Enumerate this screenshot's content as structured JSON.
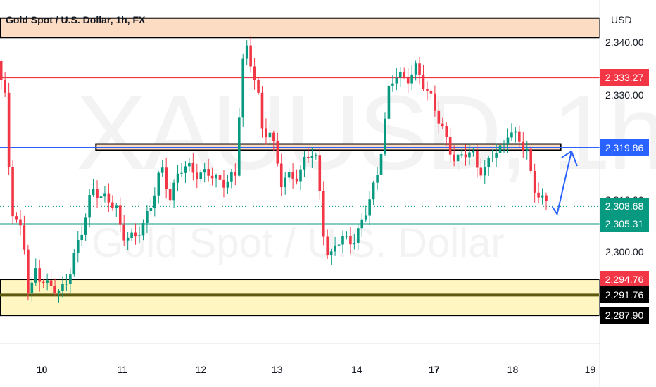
{
  "header": {
    "symbol_title": "Gold Spot / U.S. Dollar, 1h, FX",
    "currency": "USD"
  },
  "watermark": {
    "ticker": "XAUUSD, 1h",
    "name": "Gold Spot / U.S. Dollar"
  },
  "colors": {
    "up": "#089981",
    "down": "#f23645",
    "blue": "#2962ff",
    "resistance_zone": "#fcdcc2",
    "support_zone": "#fff6c2",
    "support_line": "#5d5a10",
    "green_line": "#089981"
  },
  "chart_data": {
    "type": "candlestick",
    "title": "Gold Spot / U.S. Dollar, 1h, FX",
    "ylim": [
      2284,
      2342
    ],
    "xlim": [
      0,
      100
    ],
    "y_ticks": [
      "2,340.00",
      "2,330.00",
      "2,310.00",
      "2,300.00"
    ],
    "x_ticks": [
      {
        "label": "10",
        "x": 7,
        "bold": true
      },
      {
        "label": "11",
        "x": 20.4
      },
      {
        "label": "12",
        "x": 33.5
      },
      {
        "label": "13",
        "x": 46.2
      },
      {
        "label": "14",
        "x": 59.5
      },
      {
        "label": "17",
        "x": 72.4,
        "bold": true
      },
      {
        "label": "18",
        "x": 85.5
      },
      {
        "label": "19",
        "x": 98.4
      }
    ],
    "horizontal_lines": [
      {
        "name": "red-resistance-line",
        "price": 2333.27,
        "color": "#f23645"
      },
      {
        "name": "blue-pivot-line",
        "price": 2319.86,
        "color": "#2962ff"
      },
      {
        "name": "green-support-line",
        "price": 2305.31,
        "color": "#089981"
      },
      {
        "name": "dark-support-line",
        "price": 2291.76,
        "color": "#5d5a10"
      }
    ],
    "zones": [
      {
        "name": "top-resistance-zone",
        "top": 2344.6,
        "bottom": 2340.9,
        "x_start": 0,
        "x_end": 100,
        "color": "#fcdcc2"
      },
      {
        "name": "pivot-box",
        "top": 2320.6,
        "bottom": 2319.4,
        "x_start": 16,
        "x_end": 93.5,
        "color": "#fcdcc2"
      },
      {
        "name": "bottom-support-zone",
        "top": 2294.76,
        "bottom": 2287.9,
        "x_start": 0,
        "x_end": 100,
        "color": "#fff6c2"
      }
    ],
    "price_labels": [
      {
        "value": "2,333.27",
        "price": 2333.27,
        "bg": "#f23645",
        "fg": "#ffffff"
      },
      {
        "value": "2,319.86",
        "price": 2319.86,
        "bg": "#2962ff",
        "fg": "#ffffff"
      },
      {
        "value": "2,308.68",
        "price": 2308.68,
        "bg": "#089981",
        "fg": "#ffffff"
      },
      {
        "value": "2,305.31",
        "price": 2305.31,
        "bg": "#089981",
        "fg": "#ffffff"
      },
      {
        "value": "2,294.76",
        "price": 2294.76,
        "bg": "#f23645",
        "fg": "#ffffff"
      },
      {
        "value": "2,291.76",
        "price": 2291.76,
        "bg": "#000000",
        "fg": "#ffffff"
      },
      {
        "value": "2,287.90",
        "price": 2287.9,
        "bg": "#000000",
        "fg": "#ffffff"
      }
    ],
    "current_price": 2308.68,
    "projection": [
      {
        "x": 92.1,
        "y": 2308.6
      },
      {
        "x": 92.9,
        "y": 2307.2
      },
      {
        "x": 95.3,
        "y": 2319.2
      }
    ],
    "ohlc_keypoints": [
      [
        0,
        2336.4
      ],
      [
        1.5,
        2329.0
      ],
      [
        2.5,
        2309.0
      ],
      [
        4.5,
        2303.0
      ],
      [
        5.5,
        2289.8
      ],
      [
        6.5,
        2297.0
      ],
      [
        8.5,
        2293.6
      ],
      [
        10.5,
        2292.0
      ],
      [
        12.5,
        2297.0
      ],
      [
        14.5,
        2304.4
      ],
      [
        16,
        2313.0
      ],
      [
        17.5,
        2310.0
      ],
      [
        20,
        2309.0
      ],
      [
        21,
        2303.2
      ],
      [
        23,
        2302.0
      ],
      [
        24.5,
        2306.0
      ],
      [
        26,
        2309.0
      ],
      [
        27.5,
        2316.0
      ],
      [
        29,
        2311.0
      ],
      [
        30.5,
        2315.0
      ],
      [
        32,
        2316.3
      ],
      [
        34,
        2315.0
      ],
      [
        36,
        2314.3
      ],
      [
        38,
        2313.6
      ],
      [
        40,
        2314.0
      ],
      [
        40.8,
        2333.0
      ],
      [
        41.5,
        2340.5
      ],
      [
        42.5,
        2336.0
      ],
      [
        43.5,
        2331.5
      ],
      [
        44.5,
        2321.0
      ],
      [
        45.5,
        2324.0
      ],
      [
        46.5,
        2320.0
      ],
      [
        47.5,
        2313.0
      ],
      [
        49,
        2314.0
      ],
      [
        50.5,
        2315.0
      ],
      [
        51.5,
        2318.0
      ],
      [
        52.5,
        2318.5
      ],
      [
        53.5,
        2317.0
      ],
      [
        54.5,
        2305.0
      ],
      [
        55.5,
        2298.2
      ],
      [
        56.5,
        2301.0
      ],
      [
        58,
        2302.5
      ],
      [
        60,
        2302.8
      ],
      [
        61.5,
        2306.6
      ],
      [
        62.5,
        2311.0
      ],
      [
        63.5,
        2315.0
      ],
      [
        64.5,
        2322.0
      ],
      [
        65.5,
        2330.5
      ],
      [
        67,
        2334.5
      ],
      [
        68.5,
        2333.0
      ],
      [
        70,
        2334.5
      ],
      [
        71,
        2332.5
      ],
      [
        72.5,
        2330.0
      ],
      [
        74,
        2324.0
      ],
      [
        75.5,
        2320.0
      ],
      [
        76.5,
        2318.0
      ],
      [
        78,
        2318.5
      ],
      [
        79.5,
        2318.3
      ],
      [
        80.5,
        2316.0
      ],
      [
        81.5,
        2316.0
      ],
      [
        83,
        2318.5
      ],
      [
        84.5,
        2320.0
      ],
      [
        85.5,
        2324.0
      ],
      [
        86.5,
        2322.0
      ],
      [
        87.5,
        2320.0
      ],
      [
        88.5,
        2319.5
      ],
      [
        89.5,
        2313.0
      ],
      [
        90.5,
        2311.0
      ],
      [
        91.5,
        2308.7
      ]
    ]
  }
}
